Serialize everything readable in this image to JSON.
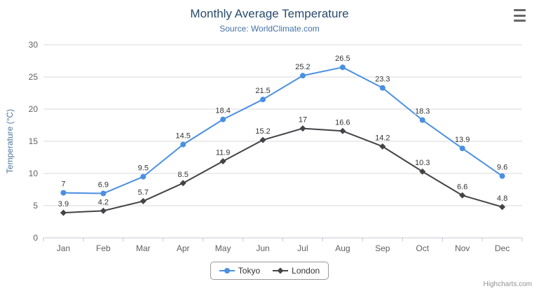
{
  "chart_data": {
    "type": "line",
    "title": "Monthly Average Temperature",
    "subtitle": "Source: WorldClimate.com",
    "categories": [
      "Jan",
      "Feb",
      "Mar",
      "Apr",
      "May",
      "Jun",
      "Jul",
      "Aug",
      "Sep",
      "Oct",
      "Nov",
      "Dec"
    ],
    "xlabel": "",
    "ylabel": "Temperature (°C)",
    "ylim": [
      0,
      30
    ],
    "ytick_step": 5,
    "grid": true,
    "legend_position": "bottom",
    "series": [
      {
        "name": "Tokyo",
        "color": "#4a90e2",
        "marker": "circle",
        "values": [
          7,
          6.9,
          9.5,
          14.5,
          18.4,
          21.5,
          25.2,
          26.5,
          23.3,
          18.3,
          13.9,
          9.6
        ]
      },
      {
        "name": "London",
        "color": "#434348",
        "marker": "diamond",
        "values": [
          3.9,
          4.2,
          5.7,
          8.5,
          11.9,
          15.2,
          17,
          16.6,
          14.2,
          10.3,
          6.6,
          4.8
        ]
      }
    ]
  },
  "credits": "Highcharts.com",
  "colors": {
    "title": "#274b6d",
    "subtitle": "#4572a7",
    "gridline": "#d8d8d8",
    "axis_line": "#c0c8d0",
    "axis_text": "#606060"
  }
}
